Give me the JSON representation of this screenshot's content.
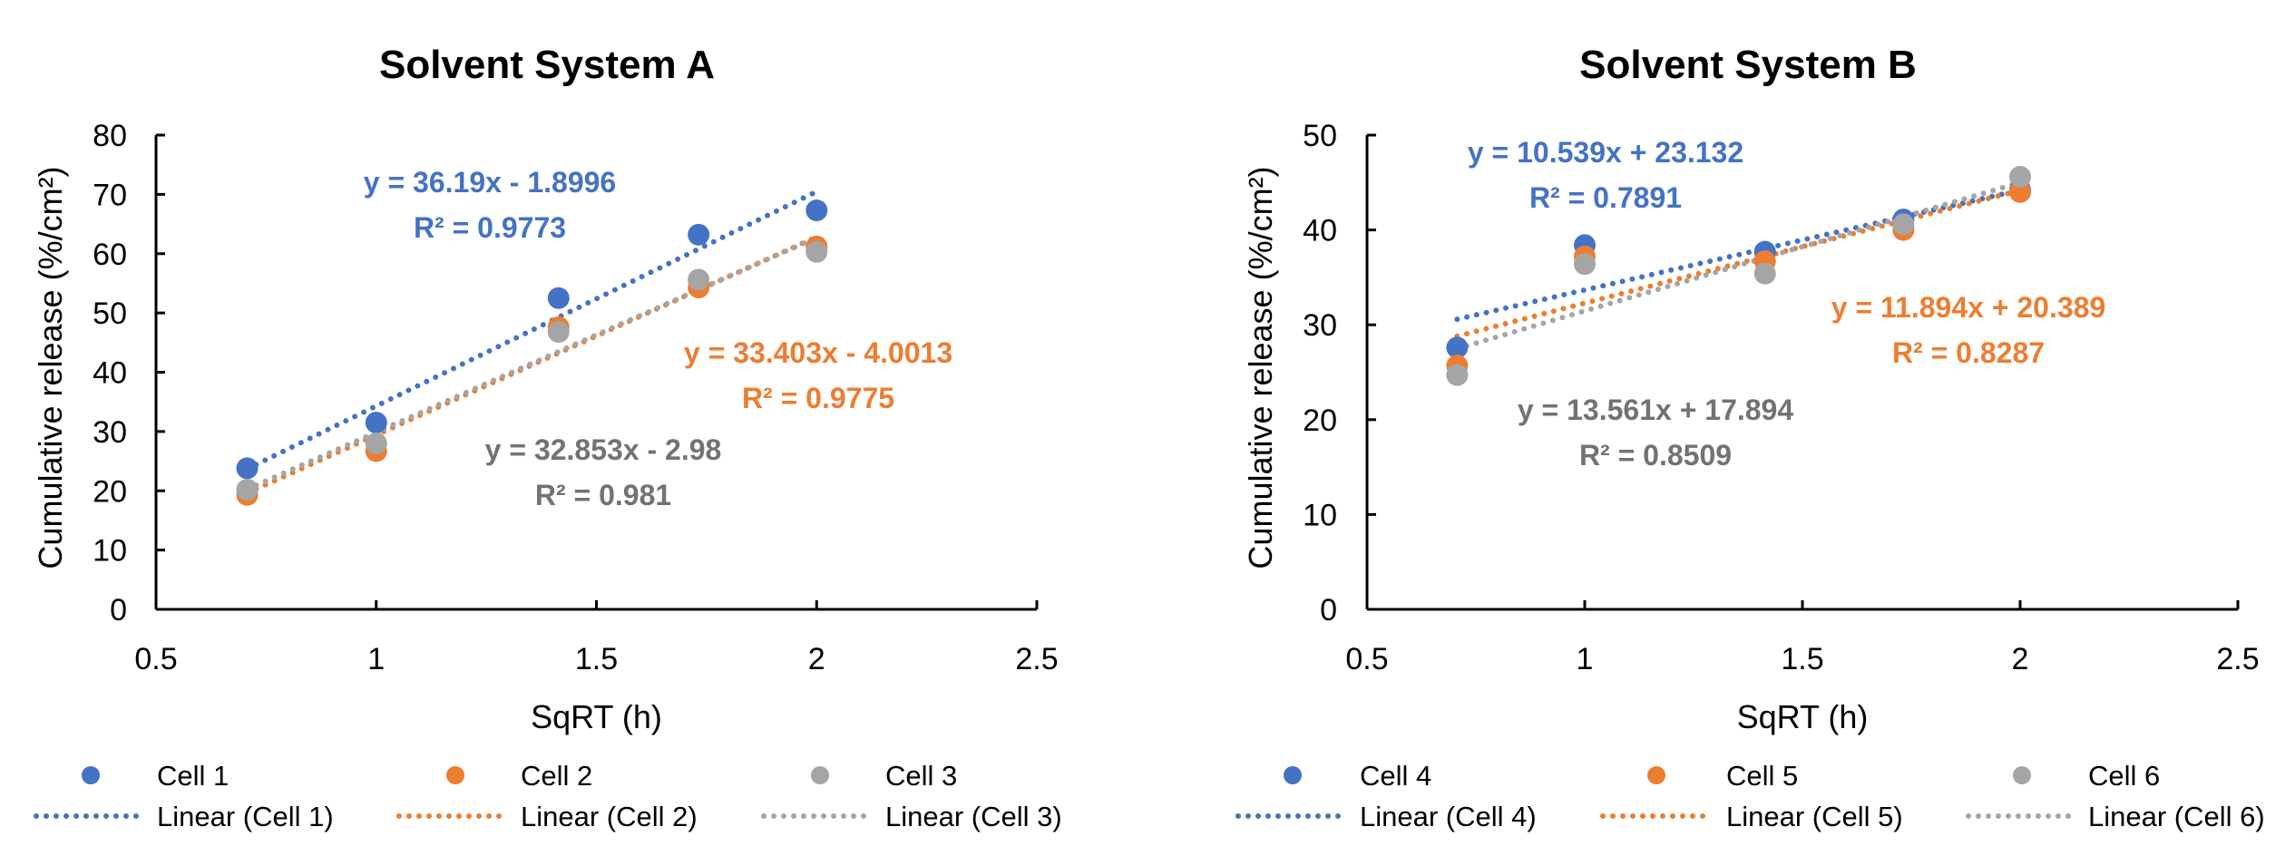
{
  "chart_data": [
    {
      "type": "scatter",
      "id": "A",
      "title": "Solvent System A",
      "xlabel": "SqRT (h)",
      "ylabel": "Cumulative release (%/cm²)",
      "xlim": [
        0.5,
        2.5
      ],
      "ylim": [
        0,
        80
      ],
      "xticks": [
        0.5,
        1,
        1.5,
        2,
        2.5
      ],
      "xtick_labels": [
        "0.5",
        "1",
        "1.5",
        "2",
        "2.5"
      ],
      "yticks": [
        0,
        10,
        20,
        30,
        40,
        50,
        60,
        70,
        80
      ],
      "ytick_labels": [
        "0",
        "10",
        "20",
        "30",
        "40",
        "50",
        "60",
        "70",
        "80"
      ],
      "grid": false,
      "legend_position": "bottom",
      "x": [
        0.707,
        1.0,
        1.414,
        1.732,
        2.0
      ],
      "series": [
        {
          "name": "Cell 1",
          "color": "#4472C4",
          "values": [
            23.8,
            31.5,
            52.5,
            63.2,
            67.3
          ],
          "trendline": {
            "name": "Linear (Cell 1)",
            "slope": 36.19,
            "intercept": -1.8996,
            "equation": "y = 36.19x - 1.8996",
            "r2_label": "R² = 0.9773",
            "label_color": "#4472C4"
          }
        },
        {
          "name": "Cell 2",
          "color": "#ED7D31",
          "values": [
            19.3,
            26.7,
            47.6,
            54.3,
            61.2
          ],
          "trendline": {
            "name": "Linear (Cell 2)",
            "slope": 33.403,
            "intercept": -4.0013,
            "equation": "y = 33.403x - 4.0013",
            "r2_label": "R² = 0.9775",
            "label_color": "#ED7D31"
          }
        },
        {
          "name": "Cell 3",
          "color": "#A5A5A5",
          "values": [
            20.2,
            28.0,
            46.8,
            55.6,
            60.3
          ],
          "trendline": {
            "name": "Linear (Cell 3)",
            "slope": 32.853,
            "intercept": -2.98,
            "equation": "y = 32.853x - 2.98",
            "r2_label": "R² = 0.981",
            "label_color": "#767171"
          }
        }
      ]
    },
    {
      "type": "scatter",
      "id": "B",
      "title": "Solvent System B",
      "xlabel": "SqRT (h)",
      "ylabel": "Cumulative release (%/cm²)",
      "xlim": [
        0.5,
        2.5
      ],
      "ylim": [
        0,
        50
      ],
      "xticks": [
        0.5,
        1,
        1.5,
        2,
        2.5
      ],
      "xtick_labels": [
        "0.5",
        "1",
        "1.5",
        "2",
        "2.5"
      ],
      "yticks": [
        0,
        10,
        20,
        30,
        40,
        50
      ],
      "ytick_labels": [
        "0",
        "10",
        "20",
        "30",
        "40",
        "50"
      ],
      "grid": false,
      "legend_position": "bottom",
      "x": [
        0.707,
        1.0,
        1.414,
        1.732,
        2.0
      ],
      "series": [
        {
          "name": "Cell 4",
          "color": "#4472C4",
          "values": [
            27.6,
            38.4,
            37.7,
            41.1,
            44.2
          ],
          "trendline": {
            "name": "Linear (Cell 4)",
            "slope": 10.539,
            "intercept": 23.132,
            "equation": "y = 10.539x + 23.132",
            "r2_label": "R² = 0.7891",
            "label_color": "#4472C4"
          }
        },
        {
          "name": "Cell 5",
          "color": "#ED7D31",
          "values": [
            25.7,
            37.2,
            36.7,
            40.0,
            44.0
          ],
          "trendline": {
            "name": "Linear (Cell 5)",
            "slope": 11.894,
            "intercept": 20.389,
            "equation": "y = 11.894x + 20.389",
            "r2_label": "R² = 0.8287",
            "label_color": "#ED7D31"
          }
        },
        {
          "name": "Cell 6",
          "color": "#A5A5A5",
          "values": [
            24.7,
            36.4,
            35.4,
            40.6,
            45.6
          ],
          "trendline": {
            "name": "Linear (Cell 6)",
            "slope": 13.561,
            "intercept": 17.894,
            "equation": "y = 13.561x + 17.894",
            "r2_label": "R² = 0.8509",
            "label_color": "#767171"
          }
        }
      ]
    }
  ]
}
